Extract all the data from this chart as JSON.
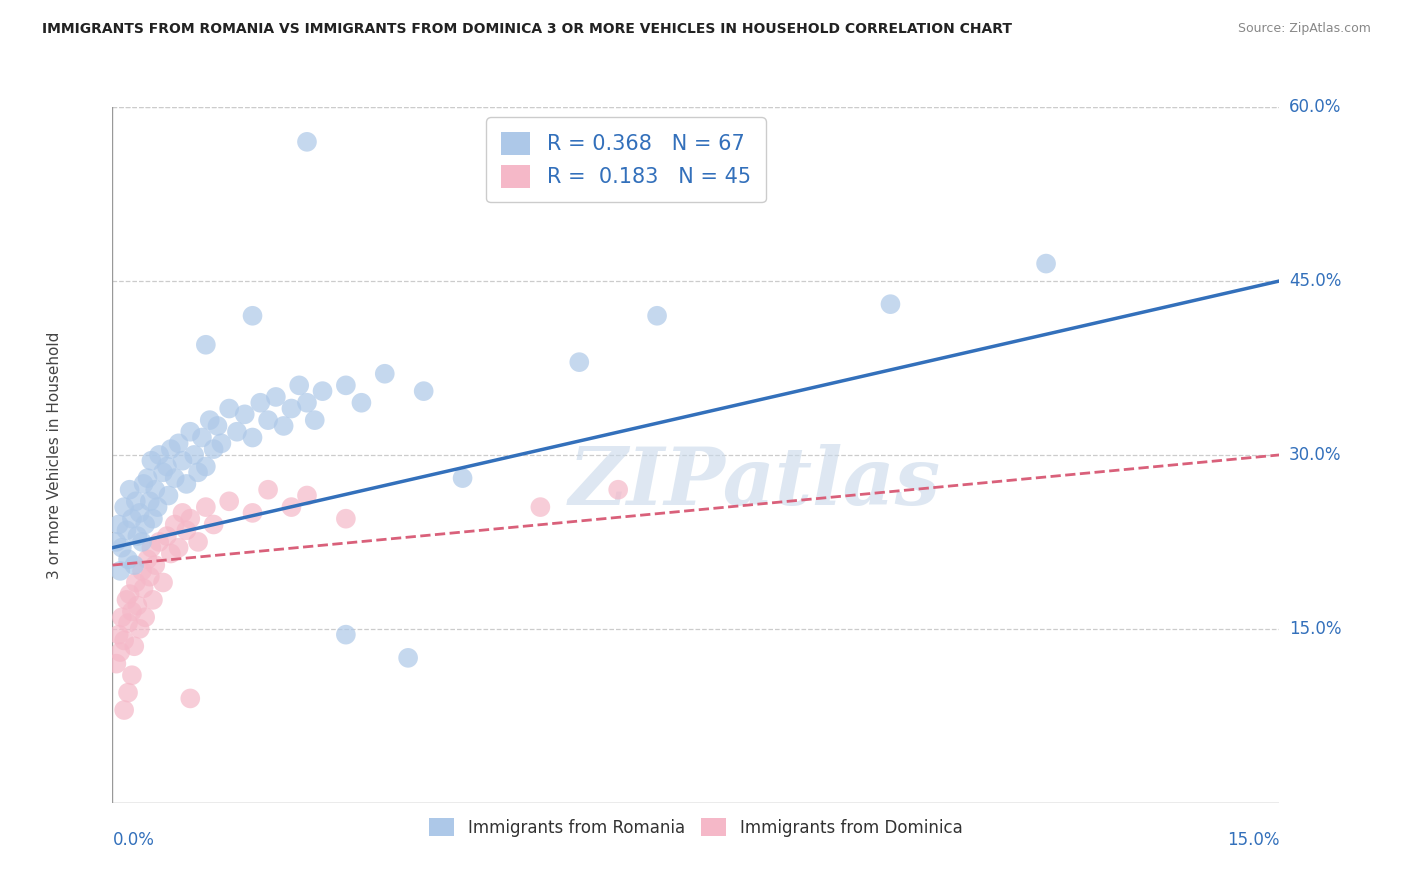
{
  "title": "IMMIGRANTS FROM ROMANIA VS IMMIGRANTS FROM DOMINICA 3 OR MORE VEHICLES IN HOUSEHOLD CORRELATION CHART",
  "source": "Source: ZipAtlas.com",
  "xmin": 0.0,
  "xmax": 15.0,
  "ymin": 0.0,
  "ymax": 60.0,
  "ytick_vals": [
    15.0,
    30.0,
    45.0,
    60.0
  ],
  "xtick_vals": [
    0.0,
    2.5,
    5.0,
    7.5,
    10.0,
    12.5,
    15.0
  ],
  "romania_color": "#adc8e8",
  "dominica_color": "#f5b8c8",
  "romania_line_color": "#3370bb",
  "dominica_line_color": "#d9607a",
  "romania_R": 0.368,
  "romania_N": 67,
  "dominica_R": 0.183,
  "dominica_N": 45,
  "legend_label_romania": "Immigrants from Romania",
  "legend_label_dominica": "Immigrants from Dominica",
  "watermark": "ZIPatlas",
  "ylabel": "3 or more Vehicles in Household",
  "romania_line_y0": 22.0,
  "romania_line_y1": 45.0,
  "dominica_line_y0": 20.5,
  "dominica_line_y1": 30.0,
  "romania_points": [
    [
      0.05,
      22.5
    ],
    [
      0.08,
      24.0
    ],
    [
      0.1,
      20.0
    ],
    [
      0.12,
      22.0
    ],
    [
      0.15,
      25.5
    ],
    [
      0.18,
      23.5
    ],
    [
      0.2,
      21.0
    ],
    [
      0.22,
      27.0
    ],
    [
      0.25,
      24.5
    ],
    [
      0.28,
      20.5
    ],
    [
      0.3,
      26.0
    ],
    [
      0.32,
      23.0
    ],
    [
      0.35,
      25.0
    ],
    [
      0.38,
      22.5
    ],
    [
      0.4,
      27.5
    ],
    [
      0.42,
      24.0
    ],
    [
      0.45,
      28.0
    ],
    [
      0.48,
      26.0
    ],
    [
      0.5,
      29.5
    ],
    [
      0.52,
      24.5
    ],
    [
      0.55,
      27.0
    ],
    [
      0.58,
      25.5
    ],
    [
      0.6,
      30.0
    ],
    [
      0.65,
      28.5
    ],
    [
      0.7,
      29.0
    ],
    [
      0.72,
      26.5
    ],
    [
      0.75,
      30.5
    ],
    [
      0.8,
      28.0
    ],
    [
      0.85,
      31.0
    ],
    [
      0.9,
      29.5
    ],
    [
      0.95,
      27.5
    ],
    [
      1.0,
      32.0
    ],
    [
      1.05,
      30.0
    ],
    [
      1.1,
      28.5
    ],
    [
      1.15,
      31.5
    ],
    [
      1.2,
      29.0
    ],
    [
      1.25,
      33.0
    ],
    [
      1.3,
      30.5
    ],
    [
      1.35,
      32.5
    ],
    [
      1.4,
      31.0
    ],
    [
      1.5,
      34.0
    ],
    [
      1.6,
      32.0
    ],
    [
      1.7,
      33.5
    ],
    [
      1.8,
      31.5
    ],
    [
      1.9,
      34.5
    ],
    [
      2.0,
      33.0
    ],
    [
      2.1,
      35.0
    ],
    [
      2.2,
      32.5
    ],
    [
      2.3,
      34.0
    ],
    [
      2.4,
      36.0
    ],
    [
      2.5,
      34.5
    ],
    [
      2.6,
      33.0
    ],
    [
      2.7,
      35.5
    ],
    [
      3.0,
      36.0
    ],
    [
      3.2,
      34.5
    ],
    [
      3.5,
      37.0
    ],
    [
      4.0,
      35.5
    ],
    [
      4.5,
      28.0
    ],
    [
      1.2,
      39.5
    ],
    [
      1.8,
      42.0
    ],
    [
      2.5,
      57.0
    ],
    [
      3.0,
      14.5
    ],
    [
      3.8,
      12.5
    ],
    [
      6.0,
      38.0
    ],
    [
      7.0,
      42.0
    ],
    [
      10.0,
      43.0
    ],
    [
      12.0,
      46.5
    ]
  ],
  "dominica_points": [
    [
      0.05,
      12.0
    ],
    [
      0.08,
      14.5
    ],
    [
      0.1,
      13.0
    ],
    [
      0.12,
      16.0
    ],
    [
      0.15,
      14.0
    ],
    [
      0.18,
      17.5
    ],
    [
      0.2,
      15.5
    ],
    [
      0.22,
      18.0
    ],
    [
      0.25,
      16.5
    ],
    [
      0.28,
      13.5
    ],
    [
      0.3,
      19.0
    ],
    [
      0.32,
      17.0
    ],
    [
      0.35,
      15.0
    ],
    [
      0.38,
      20.0
    ],
    [
      0.4,
      18.5
    ],
    [
      0.42,
      16.0
    ],
    [
      0.45,
      21.0
    ],
    [
      0.48,
      19.5
    ],
    [
      0.5,
      22.0
    ],
    [
      0.52,
      17.5
    ],
    [
      0.55,
      20.5
    ],
    [
      0.6,
      22.5
    ],
    [
      0.65,
      19.0
    ],
    [
      0.7,
      23.0
    ],
    [
      0.75,
      21.5
    ],
    [
      0.8,
      24.0
    ],
    [
      0.85,
      22.0
    ],
    [
      0.9,
      25.0
    ],
    [
      0.95,
      23.5
    ],
    [
      1.0,
      24.5
    ],
    [
      1.1,
      22.5
    ],
    [
      1.2,
      25.5
    ],
    [
      1.3,
      24.0
    ],
    [
      1.5,
      26.0
    ],
    [
      1.8,
      25.0
    ],
    [
      2.0,
      27.0
    ],
    [
      2.3,
      25.5
    ],
    [
      2.5,
      26.5
    ],
    [
      3.0,
      24.5
    ],
    [
      0.15,
      8.0
    ],
    [
      0.2,
      9.5
    ],
    [
      0.25,
      11.0
    ],
    [
      1.0,
      9.0
    ],
    [
      5.5,
      25.5
    ],
    [
      6.5,
      27.0
    ]
  ]
}
